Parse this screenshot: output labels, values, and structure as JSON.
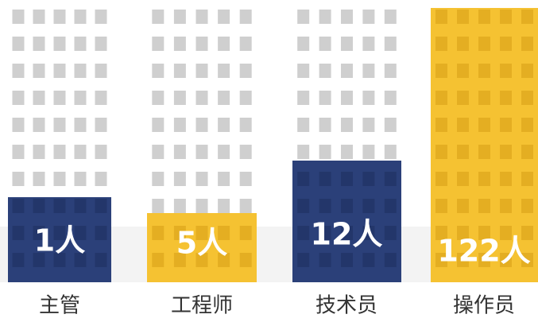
{
  "items": [
    {
      "label": "主管",
      "count": "1人"
    },
    {
      "label": "工程师",
      "count": "5人"
    },
    {
      "label": "技术员",
      "count": "12人"
    },
    {
      "label": "操作员",
      "count": "122人"
    }
  ]
}
